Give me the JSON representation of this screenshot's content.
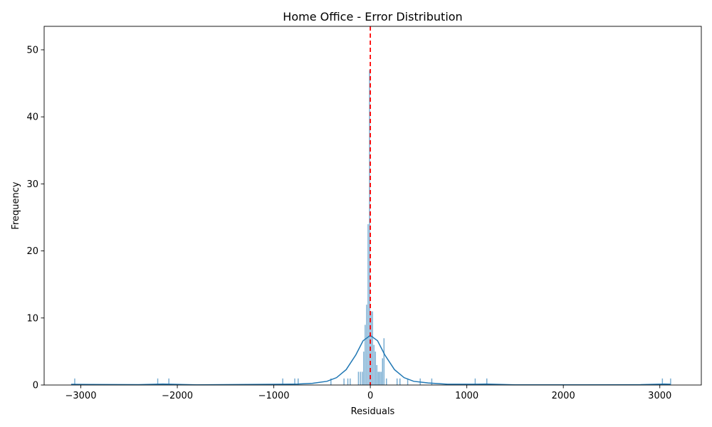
{
  "chart_data": {
    "type": "histogram",
    "title": "Home Office - Error Distribution",
    "xlabel": "Residuals",
    "ylabel": "Frequency",
    "xlim": [
      -3380,
      3430
    ],
    "ylim": [
      0,
      53.5
    ],
    "x_ticks": [
      -3000,
      -2000,
      -1000,
      0,
      1000,
      2000,
      3000
    ],
    "y_ticks": [
      0,
      10,
      20,
      30,
      40,
      50
    ],
    "grid": false,
    "legend": "none",
    "bar_color": "#1f77b4",
    "bar_opacity": 0.6,
    "kde_color": "#1f77b4",
    "zero_line": {
      "x": 0,
      "color": "#ff0000",
      "style": "dashed"
    },
    "bin_width": 14,
    "bins": [
      {
        "x": -3070,
        "count": 1
      },
      {
        "x": -2210,
        "count": 1
      },
      {
        "x": -2095,
        "count": 1
      },
      {
        "x": -915,
        "count": 1
      },
      {
        "x": -790,
        "count": 1
      },
      {
        "x": -755,
        "count": 1
      },
      {
        "x": -415,
        "count": 1
      },
      {
        "x": -280,
        "count": 1
      },
      {
        "x": -240,
        "count": 1
      },
      {
        "x": -215,
        "count": 1
      },
      {
        "x": -130,
        "count": 2
      },
      {
        "x": -110,
        "count": 2
      },
      {
        "x": -90,
        "count": 2
      },
      {
        "x": -75,
        "count": 5
      },
      {
        "x": -60,
        "count": 9
      },
      {
        "x": -45,
        "count": 12
      },
      {
        "x": -30,
        "count": 24
      },
      {
        "x": -15,
        "count": 47
      },
      {
        "x": 0,
        "count": 11
      },
      {
        "x": 15,
        "count": 11
      },
      {
        "x": 30,
        "count": 6
      },
      {
        "x": 45,
        "count": 5
      },
      {
        "x": 60,
        "count": 3
      },
      {
        "x": 75,
        "count": 2
      },
      {
        "x": 90,
        "count": 2
      },
      {
        "x": 105,
        "count": 2
      },
      {
        "x": 120,
        "count": 4
      },
      {
        "x": 135,
        "count": 7
      },
      {
        "x": 160,
        "count": 1
      },
      {
        "x": 270,
        "count": 1
      },
      {
        "x": 300,
        "count": 1
      },
      {
        "x": 380,
        "count": 1
      },
      {
        "x": 510,
        "count": 1
      },
      {
        "x": 630,
        "count": 1
      },
      {
        "x": 1080,
        "count": 1
      },
      {
        "x": 1200,
        "count": 1
      },
      {
        "x": 3020,
        "count": 1
      },
      {
        "x": 3105,
        "count": 1
      }
    ],
    "kde": [
      {
        "x": -3100,
        "y": 0.1
      },
      {
        "x": -2400,
        "y": 0.05
      },
      {
        "x": -2150,
        "y": 0.15
      },
      {
        "x": -1800,
        "y": 0.03
      },
      {
        "x": -900,
        "y": 0.12
      },
      {
        "x": -750,
        "y": 0.15
      },
      {
        "x": -600,
        "y": 0.25
      },
      {
        "x": -450,
        "y": 0.55
      },
      {
        "x": -350,
        "y": 1.1
      },
      {
        "x": -250,
        "y": 2.3
      },
      {
        "x": -150,
        "y": 4.5
      },
      {
        "x": -75,
        "y": 6.6
      },
      {
        "x": 0,
        "y": 7.4
      },
      {
        "x": 75,
        "y": 6.6
      },
      {
        "x": 150,
        "y": 4.5
      },
      {
        "x": 250,
        "y": 2.3
      },
      {
        "x": 350,
        "y": 1.1
      },
      {
        "x": 450,
        "y": 0.55
      },
      {
        "x": 600,
        "y": 0.3
      },
      {
        "x": 800,
        "y": 0.12
      },
      {
        "x": 1100,
        "y": 0.12
      },
      {
        "x": 1200,
        "y": 0.15
      },
      {
        "x": 1500,
        "y": 0.03
      },
      {
        "x": 2200,
        "y": 0.02
      },
      {
        "x": 2800,
        "y": 0.05
      },
      {
        "x": 3050,
        "y": 0.15
      },
      {
        "x": 3110,
        "y": 0.12
      }
    ]
  }
}
